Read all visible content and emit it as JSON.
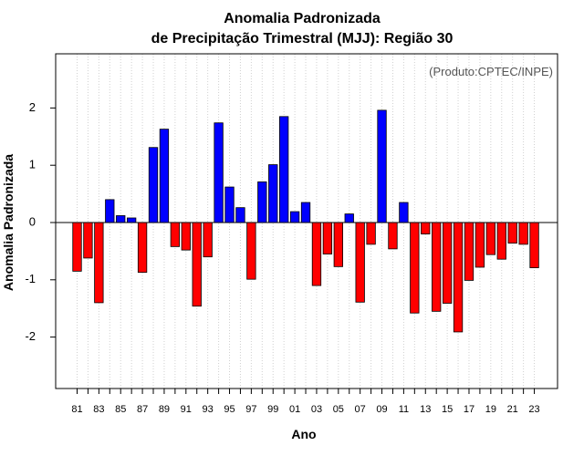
{
  "chart_data": {
    "type": "bar",
    "title": "Anomalia Padronizada",
    "subtitle": "de Precipitação Trimestral (MJJ): Região 30",
    "xlabel": "Ano",
    "ylabel": "Anomalia Padronizada",
    "annotation": "(Produto:CPTEC/INPE)",
    "ylim": [
      -2.9,
      2.9
    ],
    "yticks": [
      -2,
      -1,
      0,
      1,
      2
    ],
    "ytick_labels": [
      "-2",
      "-1",
      "0",
      "1",
      "2"
    ],
    "grid": "vertical dotted",
    "categories": [
      "81",
      "82",
      "83",
      "84",
      "85",
      "86",
      "87",
      "88",
      "89",
      "90",
      "91",
      "92",
      "93",
      "94",
      "95",
      "96",
      "97",
      "98",
      "99",
      "00",
      "01",
      "02",
      "03",
      "04",
      "05",
      "06",
      "07",
      "08",
      "09",
      "10",
      "11",
      "12",
      "13",
      "14",
      "15",
      "16",
      "17",
      "18",
      "19",
      "20",
      "21",
      "22",
      "23"
    ],
    "tick_labels": [
      "81",
      "83",
      "85",
      "87",
      "89",
      "91",
      "93",
      "95",
      "97",
      "99",
      "01",
      "03",
      "05",
      "07",
      "09",
      "11",
      "13",
      "15",
      "17",
      "19",
      "21",
      "23"
    ],
    "values": [
      -0.85,
      -0.62,
      -1.4,
      0.4,
      0.12,
      0.08,
      -0.87,
      1.31,
      1.63,
      -0.42,
      -0.48,
      -1.46,
      -0.6,
      1.74,
      0.62,
      0.26,
      -0.99,
      0.71,
      1.01,
      1.85,
      0.19,
      0.35,
      -1.1,
      -0.55,
      -0.77,
      0.15,
      -1.39,
      -0.38,
      1.96,
      -0.46,
      0.35,
      -1.58,
      -0.2,
      -1.55,
      -1.41,
      -1.91,
      -1.01,
      -0.78,
      -0.56,
      -0.64,
      -0.36,
      -0.38,
      -0.79
    ],
    "colors": {
      "positive": "#0000ff",
      "negative": "#ff0000",
      "bar_border": "#000000"
    }
  }
}
